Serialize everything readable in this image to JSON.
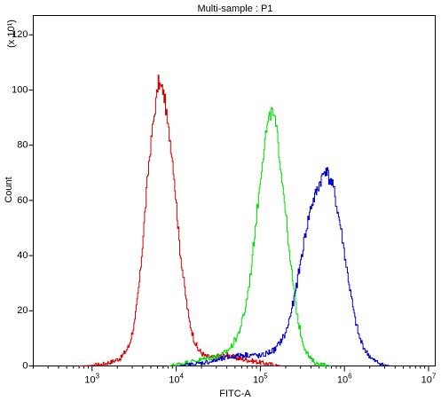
{
  "chart_data": {
    "type": "line",
    "title": "Multi-sample : P1",
    "xlabel": "FITC-A",
    "ylabel": "Count",
    "y_scale_note": "(x 10¹)",
    "x_scale": "log",
    "xlim": [
      200,
      12000000
    ],
    "ylim": [
      0,
      127
    ],
    "x_tick_exponents": [
      3,
      4,
      5,
      6,
      7
    ],
    "y_ticks": [
      "0",
      "20",
      "40",
      "60",
      "80",
      "100",
      "120"
    ],
    "grid": false,
    "legend": "none",
    "series": [
      {
        "color": "#d40000",
        "x": [
          700,
          1000,
          1300,
          1700,
          2200,
          2700,
          3200,
          3700,
          4200,
          4700,
          5200,
          5700,
          6100,
          6500,
          6900,
          7300,
          7800,
          8400,
          9200,
          10000,
          11000,
          12500,
          14000,
          16000,
          18000,
          22000,
          27000,
          33000,
          40000,
          50000,
          60000,
          75000,
          90000,
          110000,
          140000,
          180000
        ],
        "y": [
          0,
          0.2,
          0.6,
          1.5,
          3,
          7,
          16,
          33,
          55,
          74,
          86,
          96,
          103,
          101,
          100,
          96,
          88,
          82,
          72,
          58,
          42,
          28,
          17,
          10,
          6,
          3.5,
          3,
          3.5,
          4,
          3,
          2.5,
          2,
          1.5,
          1,
          0.5,
          0
        ]
      },
      {
        "color": "#00dd00",
        "x": [
          8000,
          12000,
          18000,
          25000,
          35000,
          45000,
          55000,
          65000,
          75000,
          85000,
          95000,
          105000,
          115000,
          125000,
          135000,
          145000,
          155000,
          165000,
          180000,
          200000,
          220000,
          250000,
          280000,
          320000,
          380000,
          450000,
          550000,
          700000
        ],
        "y": [
          0,
          1,
          2,
          3,
          4,
          7,
          12,
          20,
          32,
          48,
          62,
          75,
          84,
          89,
          92,
          90,
          85,
          78,
          68,
          55,
          40,
          27,
          16,
          8,
          3,
          1,
          0.5,
          0
        ]
      },
      {
        "color": "#0000cc",
        "x": [
          10000,
          15000,
          25000,
          40000,
          60000,
          80000,
          100000,
          150000,
          200000,
          250000,
          300000,
          350000,
          400000,
          450000,
          500000,
          550000,
          600000,
          650000,
          700000,
          750000,
          800000,
          900000,
          1000000,
          1150000,
          1300000,
          1500000,
          1800000,
          2200000,
          2800000,
          3500000
        ],
        "y": [
          0,
          0.5,
          1.5,
          3,
          4,
          4,
          3.5,
          6,
          12,
          24,
          38,
          50,
          58,
          62,
          66,
          69,
          72,
          68,
          66,
          63,
          58,
          50,
          40,
          28,
          18,
          10,
          5,
          2,
          0.5,
          0
        ]
      }
    ]
  }
}
